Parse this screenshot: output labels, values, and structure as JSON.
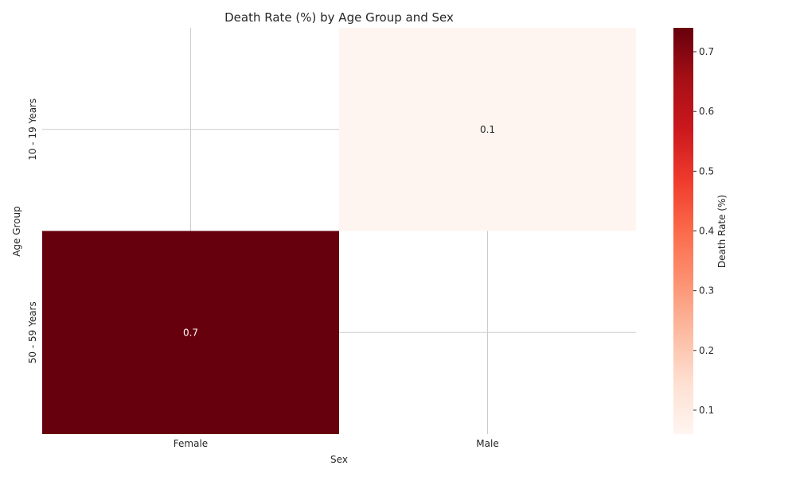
{
  "chart_data": {
    "type": "heatmap",
    "title": "Death Rate (%) by Age Group and Sex",
    "xlabel": "Sex",
    "ylabel": "Age Group",
    "x_categories": [
      "Female",
      "Male"
    ],
    "y_categories": [
      "10 - 19 Years",
      "50 - 59 Years"
    ],
    "cells": [
      {
        "row": 0,
        "col": 1,
        "value": 0.06,
        "label": "0.1"
      },
      {
        "row": 1,
        "col": 0,
        "value": 0.74,
        "label": "0.7"
      }
    ],
    "colorbar": {
      "label": "Death Rate (%)",
      "range": [
        0.06,
        0.74
      ],
      "ticks": [
        0.1,
        0.2,
        0.3,
        0.4,
        0.5,
        0.6,
        0.7
      ],
      "tick_labels": [
        "0.1",
        "0.2",
        "0.3",
        "0.4",
        "0.5",
        "0.6",
        "0.7"
      ],
      "colormap": "Reds",
      "stops": [
        "#fff5f0",
        "#fee0d2",
        "#fcbba1",
        "#fc9272",
        "#fb6a4a",
        "#ef3b2c",
        "#cb181d",
        "#a50f15",
        "#67000d"
      ]
    },
    "grid": true,
    "missing_cells": "blank"
  }
}
